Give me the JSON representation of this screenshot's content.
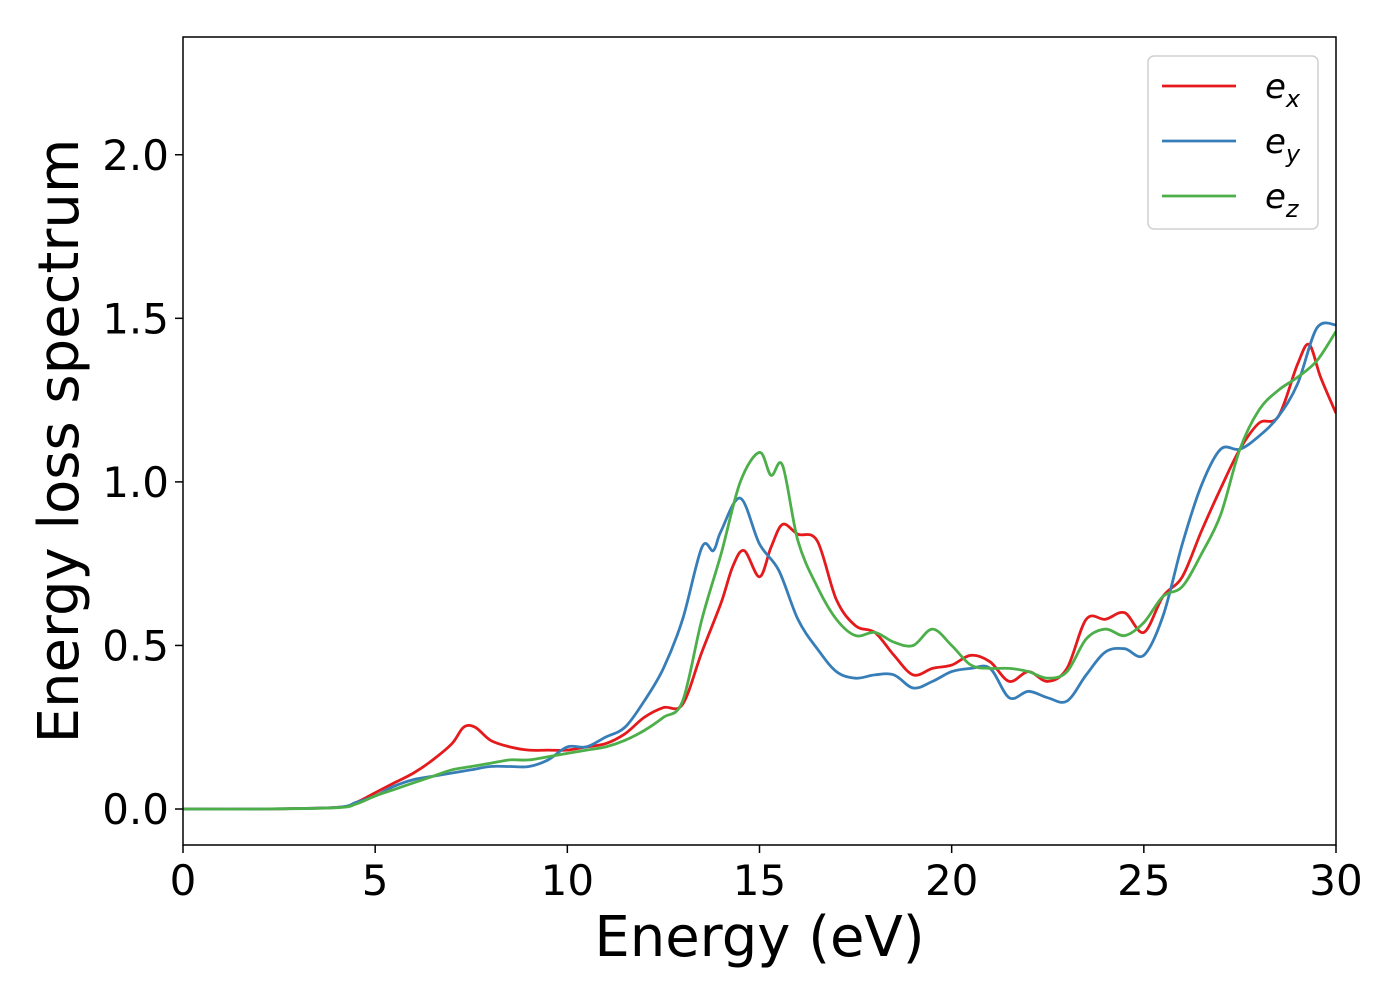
{
  "chart_data": {
    "type": "line",
    "xlabel": "Energy (eV)",
    "ylabel": "Energy loss spectrum",
    "xlim": [
      0,
      30
    ],
    "ylim": [
      -0.11,
      2.36
    ],
    "xticks": [
      0,
      5,
      10,
      15,
      20,
      25,
      30
    ],
    "xtick_labels": [
      "0",
      "5",
      "10",
      "15",
      "20",
      "25",
      "30"
    ],
    "yticks": [
      0.0,
      0.5,
      1.0,
      1.5,
      2.0
    ],
    "ytick_labels": [
      "0.0",
      "0.5",
      "1.0",
      "1.5",
      "2.0"
    ],
    "grid": false,
    "legend_position": "top-right",
    "series": [
      {
        "name": "e_x",
        "label_main": "e",
        "label_sub": "x",
        "color": "#e41a1c",
        "x": [
          0,
          2,
          4,
          4.5,
          5,
          5.5,
          6,
          6.5,
          7,
          7.3,
          7.6,
          8,
          8.5,
          9,
          9.5,
          10,
          10.5,
          11,
          11.5,
          12,
          12.5,
          13,
          13.5,
          14,
          14.3,
          14.6,
          15,
          15.3,
          15.6,
          16,
          16.5,
          17,
          17.5,
          18,
          18.5,
          19,
          19.5,
          20,
          20.5,
          21,
          21.5,
          22,
          22.5,
          23,
          23.5,
          24,
          24.5,
          25,
          25.5,
          26,
          26.5,
          27,
          27.5,
          28,
          28.5,
          29,
          29.3,
          29.6,
          30
        ],
        "y": [
          0,
          0,
          0.005,
          0.02,
          0.05,
          0.08,
          0.11,
          0.15,
          0.2,
          0.25,
          0.25,
          0.21,
          0.19,
          0.18,
          0.18,
          0.18,
          0.19,
          0.2,
          0.23,
          0.28,
          0.31,
          0.32,
          0.48,
          0.63,
          0.74,
          0.79,
          0.71,
          0.8,
          0.87,
          0.84,
          0.82,
          0.64,
          0.56,
          0.54,
          0.47,
          0.41,
          0.43,
          0.44,
          0.47,
          0.45,
          0.39,
          0.42,
          0.39,
          0.43,
          0.58,
          0.58,
          0.6,
          0.54,
          0.65,
          0.71,
          0.85,
          0.98,
          1.1,
          1.18,
          1.2,
          1.36,
          1.42,
          1.32,
          1.21
        ]
      },
      {
        "name": "e_y",
        "label_main": "e",
        "label_sub": "y",
        "color": "#377eb8",
        "x": [
          0,
          2,
          4,
          4.5,
          5,
          5.5,
          6,
          6.5,
          7,
          7.5,
          8,
          8.5,
          9,
          9.5,
          10,
          10.5,
          11,
          11.5,
          12,
          12.5,
          13,
          13.5,
          13.8,
          14,
          14.5,
          15,
          15.5,
          16,
          16.5,
          17,
          17.5,
          18,
          18.5,
          19,
          19.5,
          20,
          20.5,
          21,
          21.5,
          22,
          22.5,
          23,
          23.5,
          24,
          24.5,
          25,
          25.5,
          26,
          26.5,
          27,
          27.5,
          28,
          28.5,
          29,
          29.5,
          30
        ],
        "y": [
          0,
          0,
          0.005,
          0.02,
          0.04,
          0.07,
          0.09,
          0.1,
          0.11,
          0.12,
          0.13,
          0.13,
          0.13,
          0.15,
          0.19,
          0.19,
          0.22,
          0.25,
          0.33,
          0.43,
          0.58,
          0.8,
          0.79,
          0.85,
          0.95,
          0.81,
          0.73,
          0.58,
          0.49,
          0.42,
          0.4,
          0.41,
          0.41,
          0.37,
          0.39,
          0.42,
          0.43,
          0.43,
          0.34,
          0.36,
          0.34,
          0.33,
          0.41,
          0.48,
          0.49,
          0.47,
          0.59,
          0.81,
          0.99,
          1.1,
          1.1,
          1.14,
          1.2,
          1.3,
          1.47,
          1.48
        ]
      },
      {
        "name": "e_z",
        "label_main": "e",
        "label_sub": "z",
        "color": "#4daf4a",
        "x": [
          0,
          2,
          4,
          4.5,
          5,
          5.5,
          6,
          6.5,
          7,
          7.5,
          8,
          8.5,
          9,
          9.5,
          10,
          10.5,
          11,
          11.5,
          12,
          12.5,
          13,
          13.5,
          14,
          14.5,
          15,
          15.3,
          15.6,
          16,
          16.5,
          17,
          17.5,
          18,
          18.5,
          19,
          19.5,
          20,
          20.5,
          21,
          21.5,
          22,
          22.5,
          23,
          23.5,
          24,
          24.5,
          25,
          25.5,
          26,
          26.5,
          27,
          27.5,
          28,
          28.5,
          29,
          29.5,
          30
        ],
        "y": [
          0,
          0,
          0.004,
          0.015,
          0.04,
          0.06,
          0.08,
          0.1,
          0.12,
          0.13,
          0.14,
          0.15,
          0.15,
          0.16,
          0.17,
          0.18,
          0.19,
          0.21,
          0.24,
          0.28,
          0.33,
          0.58,
          0.78,
          1.0,
          1.09,
          1.02,
          1.05,
          0.82,
          0.68,
          0.58,
          0.53,
          0.54,
          0.51,
          0.5,
          0.55,
          0.5,
          0.44,
          0.43,
          0.43,
          0.42,
          0.4,
          0.42,
          0.52,
          0.55,
          0.53,
          0.57,
          0.65,
          0.68,
          0.78,
          0.9,
          1.1,
          1.22,
          1.28,
          1.32,
          1.37,
          1.46
        ]
      }
    ]
  }
}
